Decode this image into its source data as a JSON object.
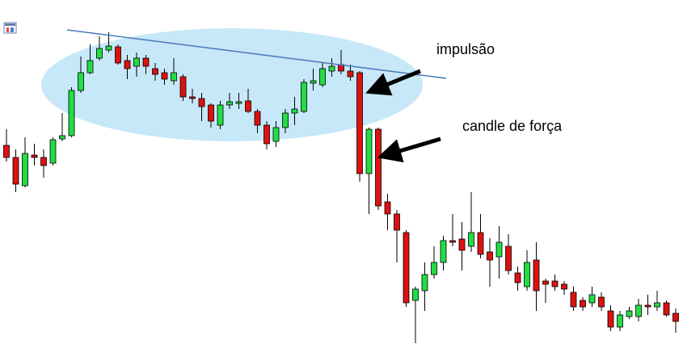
{
  "chart_data": {
    "type": "candlestick",
    "annotations": [
      "impulsão",
      "candle de força"
    ],
    "up_color": "#22dd44",
    "down_color": "#dd1111",
    "ylim": [
      4,
      430
    ],
    "open": [
      250,
      235,
      200,
      238,
      235,
      228,
      258,
      262,
      318,
      340,
      358,
      368,
      372,
      355,
      348,
      358,
      345,
      340,
      330,
      335,
      310,
      308,
      300,
      275,
      300,
      302,
      305,
      292,
      275,
      255,
      272,
      290,
      292,
      327,
      325,
      342,
      350,
      342,
      340,
      215,
      270,
      180,
      165,
      142,
      58,
      70,
      90,
      105,
      132,
      134,
      125,
      142,
      118,
      112,
      125,
      92,
      75,
      108,
      82,
      82,
      78,
      68,
      58,
      55,
      62,
      45,
      25,
      38,
      38,
      52,
      50,
      55,
      42
    ],
    "high": [
      270,
      245,
      260,
      252,
      245,
      260,
      290,
      322,
      360,
      375,
      385,
      390,
      375,
      362,
      365,
      362,
      352,
      345,
      358,
      338,
      320,
      315,
      302,
      305,
      315,
      315,
      320,
      295,
      280,
      280,
      295,
      310,
      332,
      345,
      352,
      358,
      368,
      350,
      342,
      272,
      272,
      190,
      170,
      145,
      75,
      105,
      125,
      138,
      165,
      155,
      192,
      165,
      135,
      150,
      140,
      100,
      120,
      130,
      85,
      90,
      82,
      75,
      62,
      75,
      68,
      52,
      45,
      50,
      60,
      65,
      70,
      58,
      48
    ],
    "low": [
      230,
      192,
      198,
      225,
      210,
      225,
      255,
      260,
      315,
      338,
      355,
      365,
      350,
      332,
      335,
      338,
      330,
      325,
      325,
      305,
      302,
      280,
      272,
      270,
      295,
      295,
      290,
      265,
      245,
      248,
      265,
      275,
      290,
      318,
      322,
      335,
      338,
      330,
      205,
      165,
      170,
      145,
      105,
      50,
      5,
      45,
      85,
      95,
      125,
      95,
      118,
      110,
      75,
      85,
      90,
      70,
      70,
      45,
      55,
      70,
      65,
      45,
      45,
      50,
      45,
      20,
      20,
      35,
      32,
      40,
      45,
      38,
      18
    ],
    "close": [
      235,
      202,
      240,
      235,
      225,
      257,
      262,
      318,
      340,
      355,
      370,
      373,
      352,
      345,
      358,
      348,
      338,
      332,
      340,
      310,
      308,
      298,
      280,
      300,
      304,
      304,
      292,
      275,
      252,
      272,
      290,
      295,
      328,
      330,
      345,
      348,
      342,
      335,
      215,
      270,
      175,
      165,
      145,
      55,
      72,
      90,
      105,
      132,
      130,
      120,
      142,
      115,
      108,
      130,
      95,
      80,
      105,
      70,
      78,
      75,
      72,
      50,
      50,
      65,
      50,
      25,
      40,
      45,
      52,
      50,
      55,
      40,
      32
    ]
  }
}
